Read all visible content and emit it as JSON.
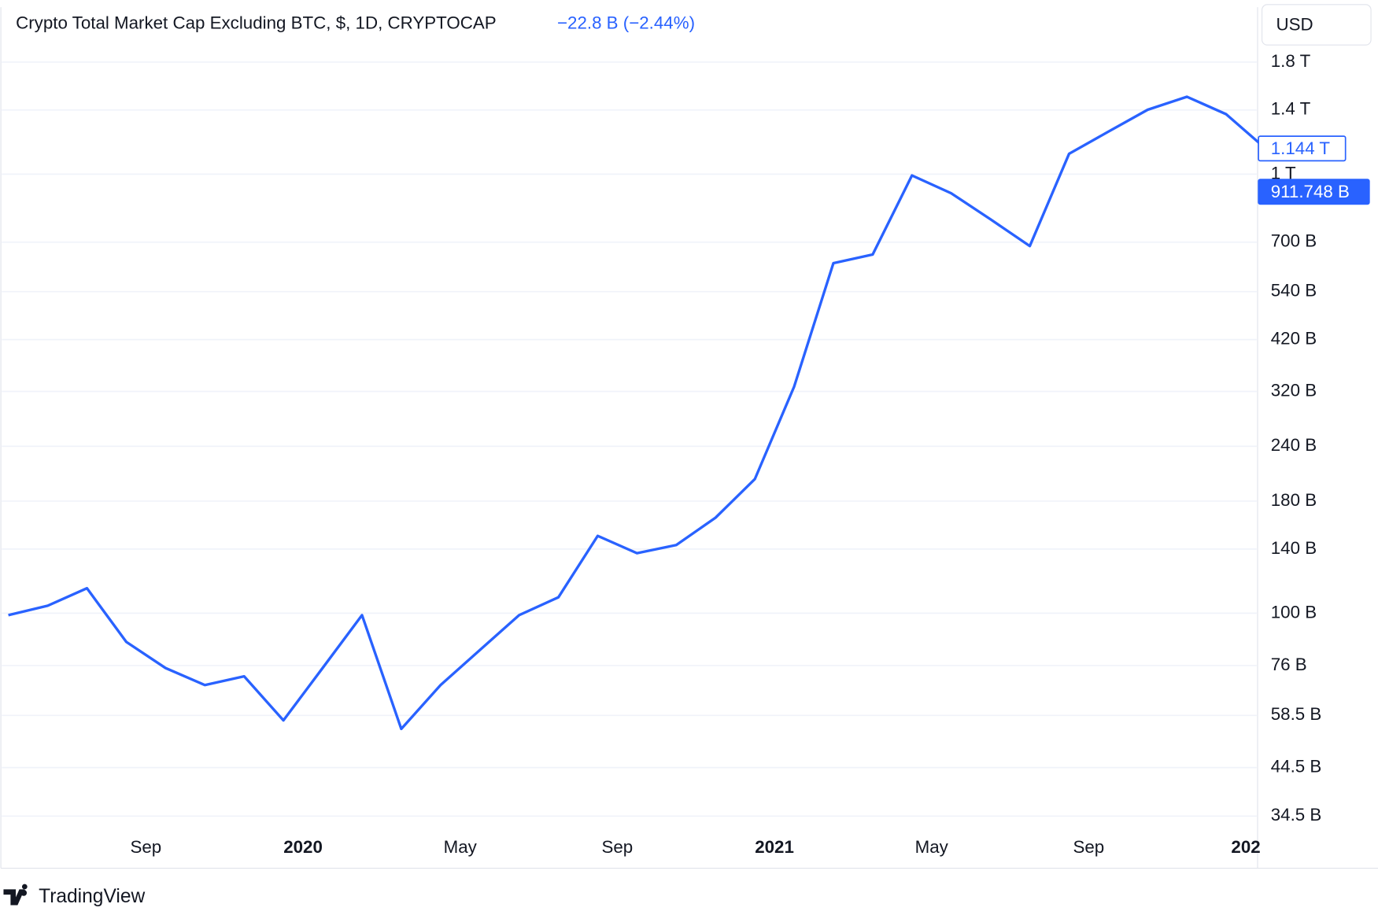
{
  "chart_data": {
    "type": "line",
    "title": "Crypto Total Market Cap Excluding BTC, $, 1D, CRYPTOCAP",
    "change": "−22.8 B (−2.44%)",
    "currency": "USD",
    "brand": "TradingView",
    "log_scale": true,
    "grid": true,
    "x": [
      "2019-05",
      "2019-06",
      "2019-07",
      "2019-08",
      "2019-09",
      "2019-10",
      "2019-11",
      "2019-12",
      "2020-01",
      "2020-02",
      "2020-03",
      "2020-04",
      "2020-05",
      "2020-06",
      "2020-07",
      "2020-08",
      "2020-09",
      "2020-10",
      "2020-11",
      "2020-12",
      "2021-01",
      "2021-02",
      "2021-03",
      "2021-04",
      "2021-05",
      "2021-06",
      "2021-07",
      "2021-08",
      "2021-09",
      "2021-10",
      "2021-11",
      "2021-12",
      "2022-01"
    ],
    "series": [
      {
        "name": "CRYPTOCAP",
        "color": "#2962ff",
        "values": [
          99,
          104,
          114,
          86,
          75,
          68.6,
          71.8,
          57,
          75,
          99,
          54.5,
          68.6,
          82.4,
          99,
          108.7,
          150,
          137,
          143,
          165,
          202,
          328,
          627,
          656,
          993,
          905,
          789,
          686,
          1113,
          1250,
          1402,
          1501,
          1369,
          1144
        ]
      }
    ],
    "ylim": [
      32,
      2400
    ],
    "yticks": [
      {
        "value": 34.5,
        "label": "34.5 B"
      },
      {
        "value": 44.5,
        "label": "44.5 B"
      },
      {
        "value": 58.5,
        "label": "58.5 B"
      },
      {
        "value": 76,
        "label": "76 B"
      },
      {
        "value": 100,
        "label": "100 B"
      },
      {
        "value": 140,
        "label": "140 B"
      },
      {
        "value": 180,
        "label": "180 B"
      },
      {
        "value": 240,
        "label": "240 B"
      },
      {
        "value": 320,
        "label": "320 B"
      },
      {
        "value": 420,
        "label": "420 B"
      },
      {
        "value": 540,
        "label": "540 B"
      },
      {
        "value": 700,
        "label": "700 B"
      },
      {
        "value": 1000,
        "label": "1 T"
      },
      {
        "value": 1400,
        "label": "1.4 T"
      },
      {
        "value": 1800,
        "label": "1.8 T"
      }
    ],
    "xticks": [
      {
        "value": "2019-09",
        "label": "Sep"
      },
      {
        "value": "2020-01",
        "label": "2020"
      },
      {
        "value": "2020-05",
        "label": "May"
      },
      {
        "value": "2020-09",
        "label": "Sep"
      },
      {
        "value": "2021-01",
        "label": "2021"
      },
      {
        "value": "2021-05",
        "label": "May"
      },
      {
        "value": "2021-09",
        "label": "Sep"
      },
      {
        "value": "2022-01",
        "label": "202"
      }
    ],
    "price_labels": [
      {
        "value": 1144,
        "label": "1.144 T"
      },
      {
        "value": 911.748,
        "label": "911.748 B"
      }
    ]
  }
}
